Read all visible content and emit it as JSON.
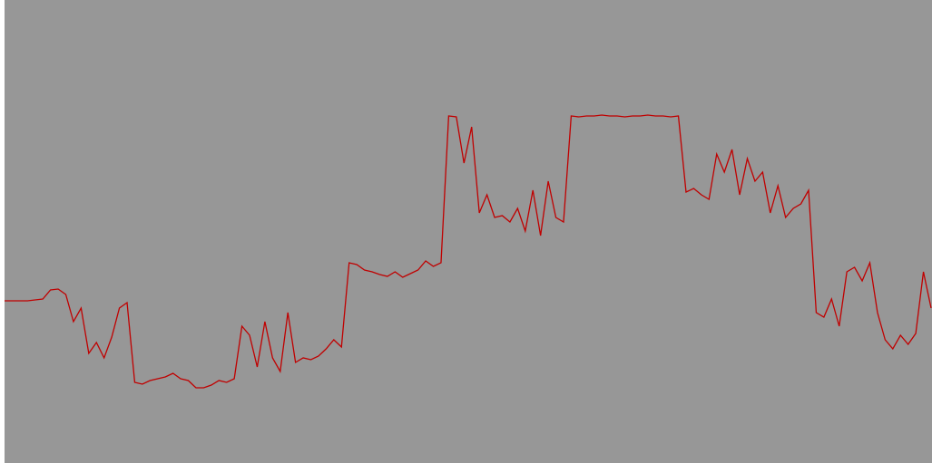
{
  "chart_data": {
    "type": "line",
    "color": "#c00000",
    "values": [
      179,
      179,
      179,
      179,
      180,
      181,
      191,
      192,
      186,
      156,
      171,
      121,
      133,
      116,
      139,
      171,
      177,
      89,
      87,
      91,
      93,
      95,
      99,
      93,
      91,
      83,
      83,
      86,
      91,
      89,
      93,
      151,
      141,
      106,
      156,
      116,
      101,
      166,
      111,
      116,
      114,
      118,
      126,
      136,
      128,
      221,
      219,
      213,
      211,
      208,
      206,
      211,
      205,
      209,
      213,
      223,
      217,
      221,
      383,
      382,
      331,
      371,
      276,
      296,
      271,
      273,
      266,
      281,
      256,
      301,
      251,
      311,
      271,
      266,
      383,
      382,
      383,
      383,
      384,
      383,
      383,
      382,
      383,
      383,
      384,
      383,
      383,
      382,
      383,
      299,
      303,
      296,
      291,
      341,
      321,
      346,
      296,
      336,
      311,
      321,
      276,
      306,
      271,
      281,
      286,
      301,
      166,
      161,
      181,
      151,
      211,
      216,
      201,
      221,
      166,
      136,
      126,
      141,
      131,
      143,
      211,
      171
    ],
    "ylim": [
      0,
      511
    ]
  }
}
